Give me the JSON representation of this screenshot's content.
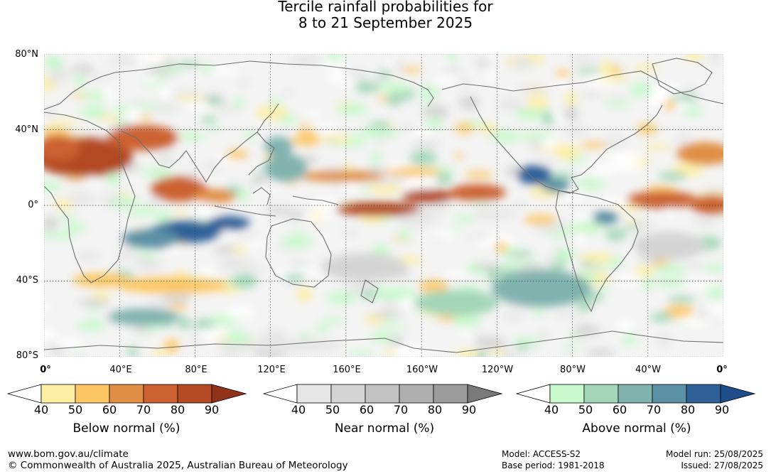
{
  "title": {
    "line1": "Tercile rainfall probabilities for",
    "line2": "8 to 21 September 2025"
  },
  "map": {
    "lat_labels": [
      "80°N",
      "40°N",
      "0°",
      "40°S",
      "80°S"
    ],
    "lon_labels": [
      "0°",
      "40°E",
      "80°E",
      "120°E",
      "160°E",
      "160°W",
      "120°W",
      "80°W",
      "40°W",
      "0°"
    ]
  },
  "legends": [
    {
      "title": "Below normal (%)",
      "ticks": [
        "40",
        "50",
        "60",
        "70",
        "80",
        "90"
      ],
      "colors": [
        "#ffffff",
        "#fdeea3",
        "#fdc766",
        "#e08e44",
        "#cc6231",
        "#b34a24",
        "#93321a"
      ]
    },
    {
      "title": "Near normal (%)",
      "ticks": [
        "40",
        "50",
        "60",
        "70",
        "80",
        "90"
      ],
      "colors": [
        "#ffffff",
        "#e6e6e6",
        "#d4d4d4",
        "#c2c2c2",
        "#afafaf",
        "#9c9c9c",
        "#7a7a7a"
      ]
    },
    {
      "title": "Above normal (%)",
      "ticks": [
        "40",
        "50",
        "60",
        "70",
        "80",
        "90"
      ],
      "colors": [
        "#ffffff",
        "#c8f8cc",
        "#a3d6b8",
        "#80b2ae",
        "#5b91a4",
        "#2f6098",
        "#1e4f8c"
      ]
    }
  ],
  "footer": {
    "url": "www.bom.gov.au/climate",
    "copyright": "© Commonwealth of Australia 2025, Australian Bureau of Meteorology",
    "model": "Model: ACCESS-S2",
    "base_period": "Base period: 1981-2018",
    "model_run": "Model run: 25/08/2025",
    "issued": "Issued: 27/08/2025"
  }
}
